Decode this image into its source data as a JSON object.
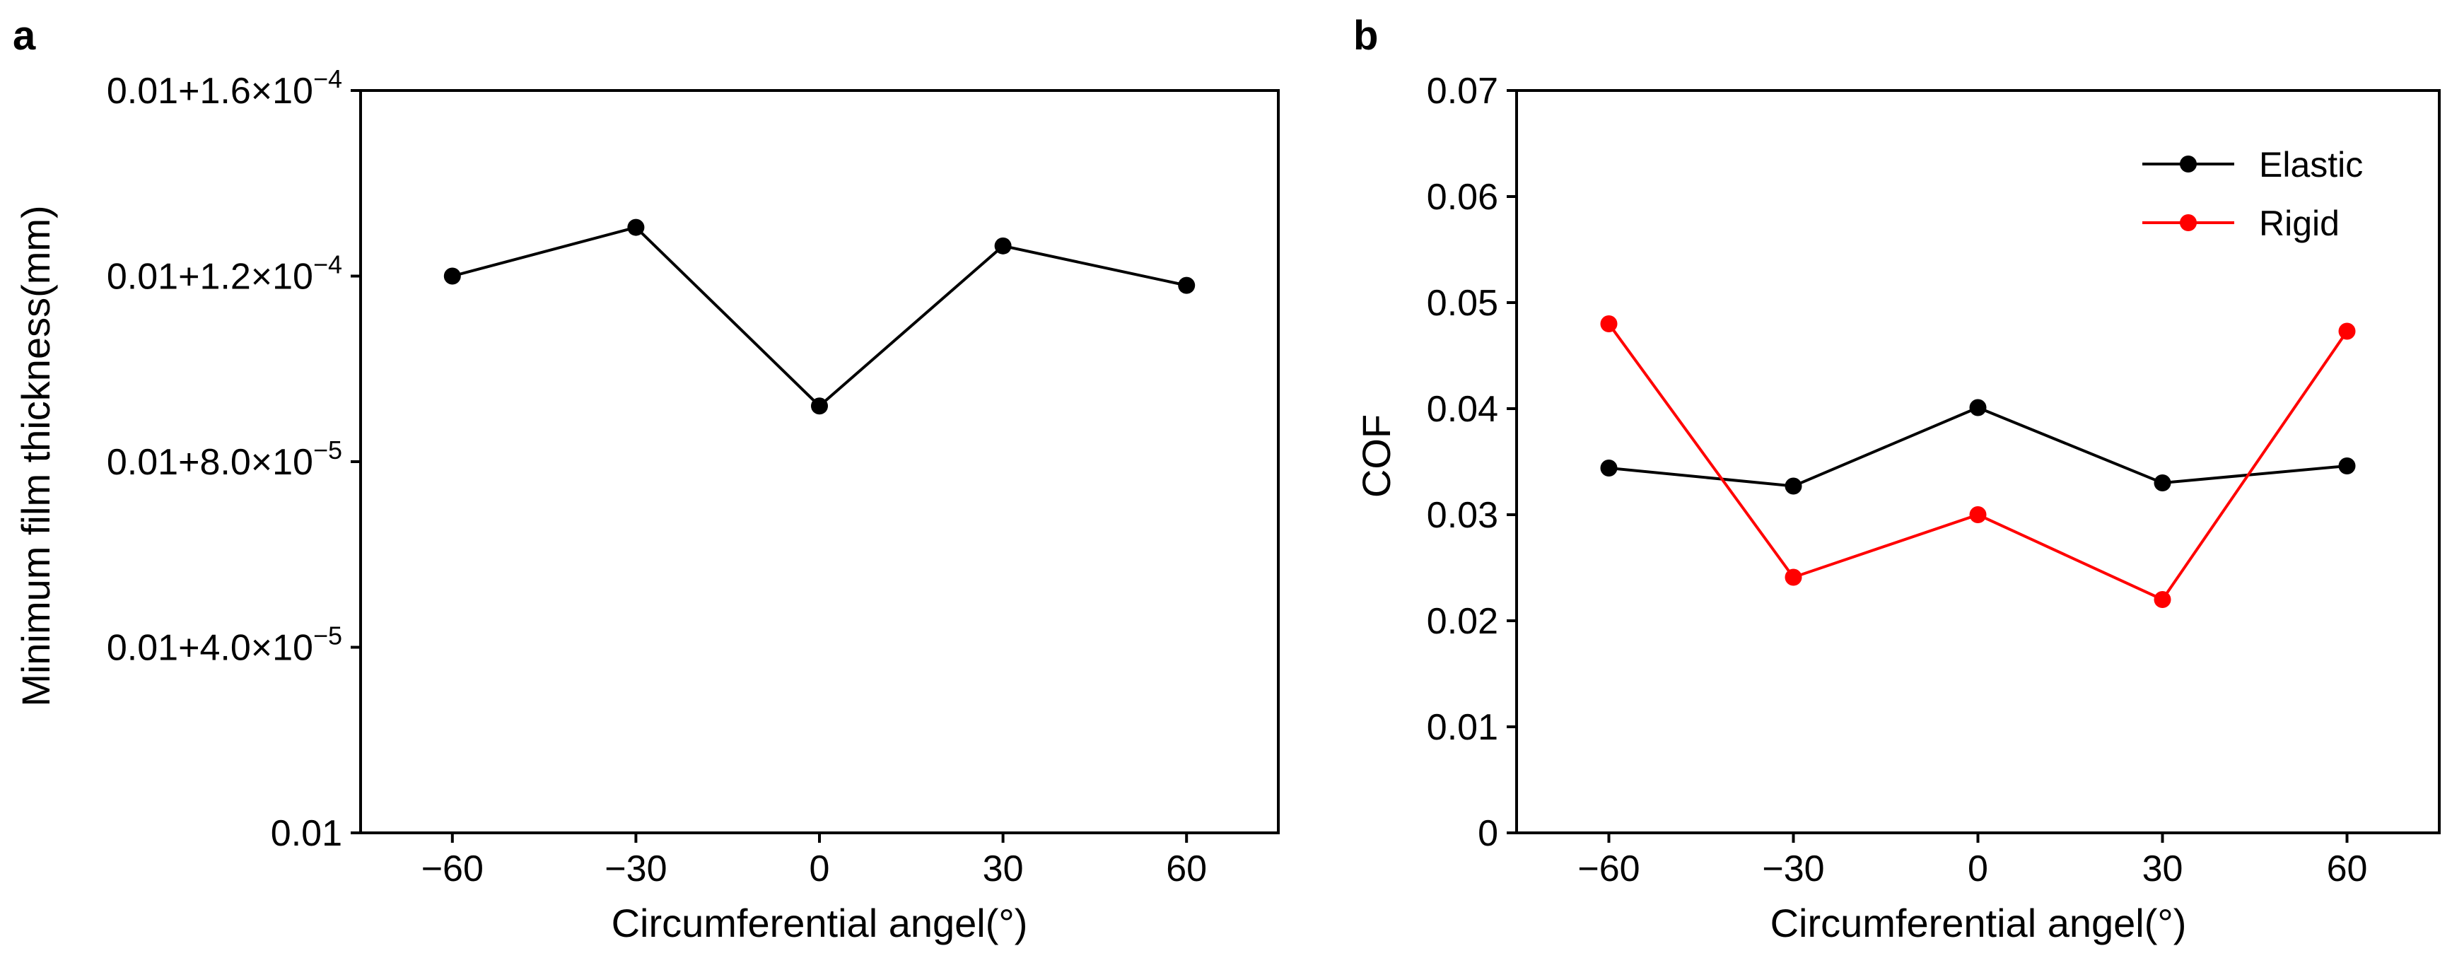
{
  "chart_data": [
    {
      "panel_label": "a",
      "type": "line",
      "x": [
        -60,
        -30,
        0,
        30,
        60
      ],
      "x_tick_labels": [
        "−60",
        "−30",
        "0",
        "30",
        "60"
      ],
      "xlim": [
        -75,
        75
      ],
      "y_offset": 0.01,
      "y_unit_note": "values are excess over 0.01 mm",
      "series": [
        {
          "values": [
            0.00012,
            0.0001305,
            9.2e-05,
            0.0001265,
            0.000118
          ],
          "color": "#000000"
        }
      ],
      "ylim": [
        0,
        0.00016
      ],
      "y_ticks": [
        0,
        4e-05,
        8e-05,
        0.00012,
        0.00016
      ],
      "y_tick_labels": [
        {
          "base": "0.01",
          "exp": ""
        },
        {
          "base": "0.01+4.0×10",
          "exp": "−5"
        },
        {
          "base": "0.01+8.0×10",
          "exp": "−5"
        },
        {
          "base": "0.01+1.2×10",
          "exp": "−4"
        },
        {
          "base": "0.01+1.6×10",
          "exp": "−4"
        }
      ],
      "xlabel": "Circumferential angel(°)",
      "ylabel": "Minimum film thickness(mm)",
      "grid": false
    },
    {
      "panel_label": "b",
      "type": "line",
      "x": [
        -60,
        -30,
        0,
        30,
        60
      ],
      "x_tick_labels": [
        "−60",
        "−30",
        "0",
        "30",
        "60"
      ],
      "xlim": [
        -75,
        75
      ],
      "series": [
        {
          "name": "Elastic",
          "values": [
            0.0344,
            0.0327,
            0.0401,
            0.033,
            0.0346
          ],
          "color": "#000000"
        },
        {
          "name": "Rigid",
          "values": [
            0.048,
            0.0241,
            0.03,
            0.022,
            0.0473
          ],
          "color": "#ff0000"
        }
      ],
      "ylim": [
        0,
        0.07
      ],
      "y_ticks": [
        0,
        0.01,
        0.02,
        0.03,
        0.04,
        0.05,
        0.06,
        0.07
      ],
      "y_tick_labels": [
        "0",
        "0.01",
        "0.02",
        "0.03",
        "0.04",
        "0.05",
        "0.06",
        "0.07"
      ],
      "xlabel": "Circumferential angel(°)",
      "ylabel": "COF",
      "legend": "top-right",
      "grid": false
    }
  ]
}
